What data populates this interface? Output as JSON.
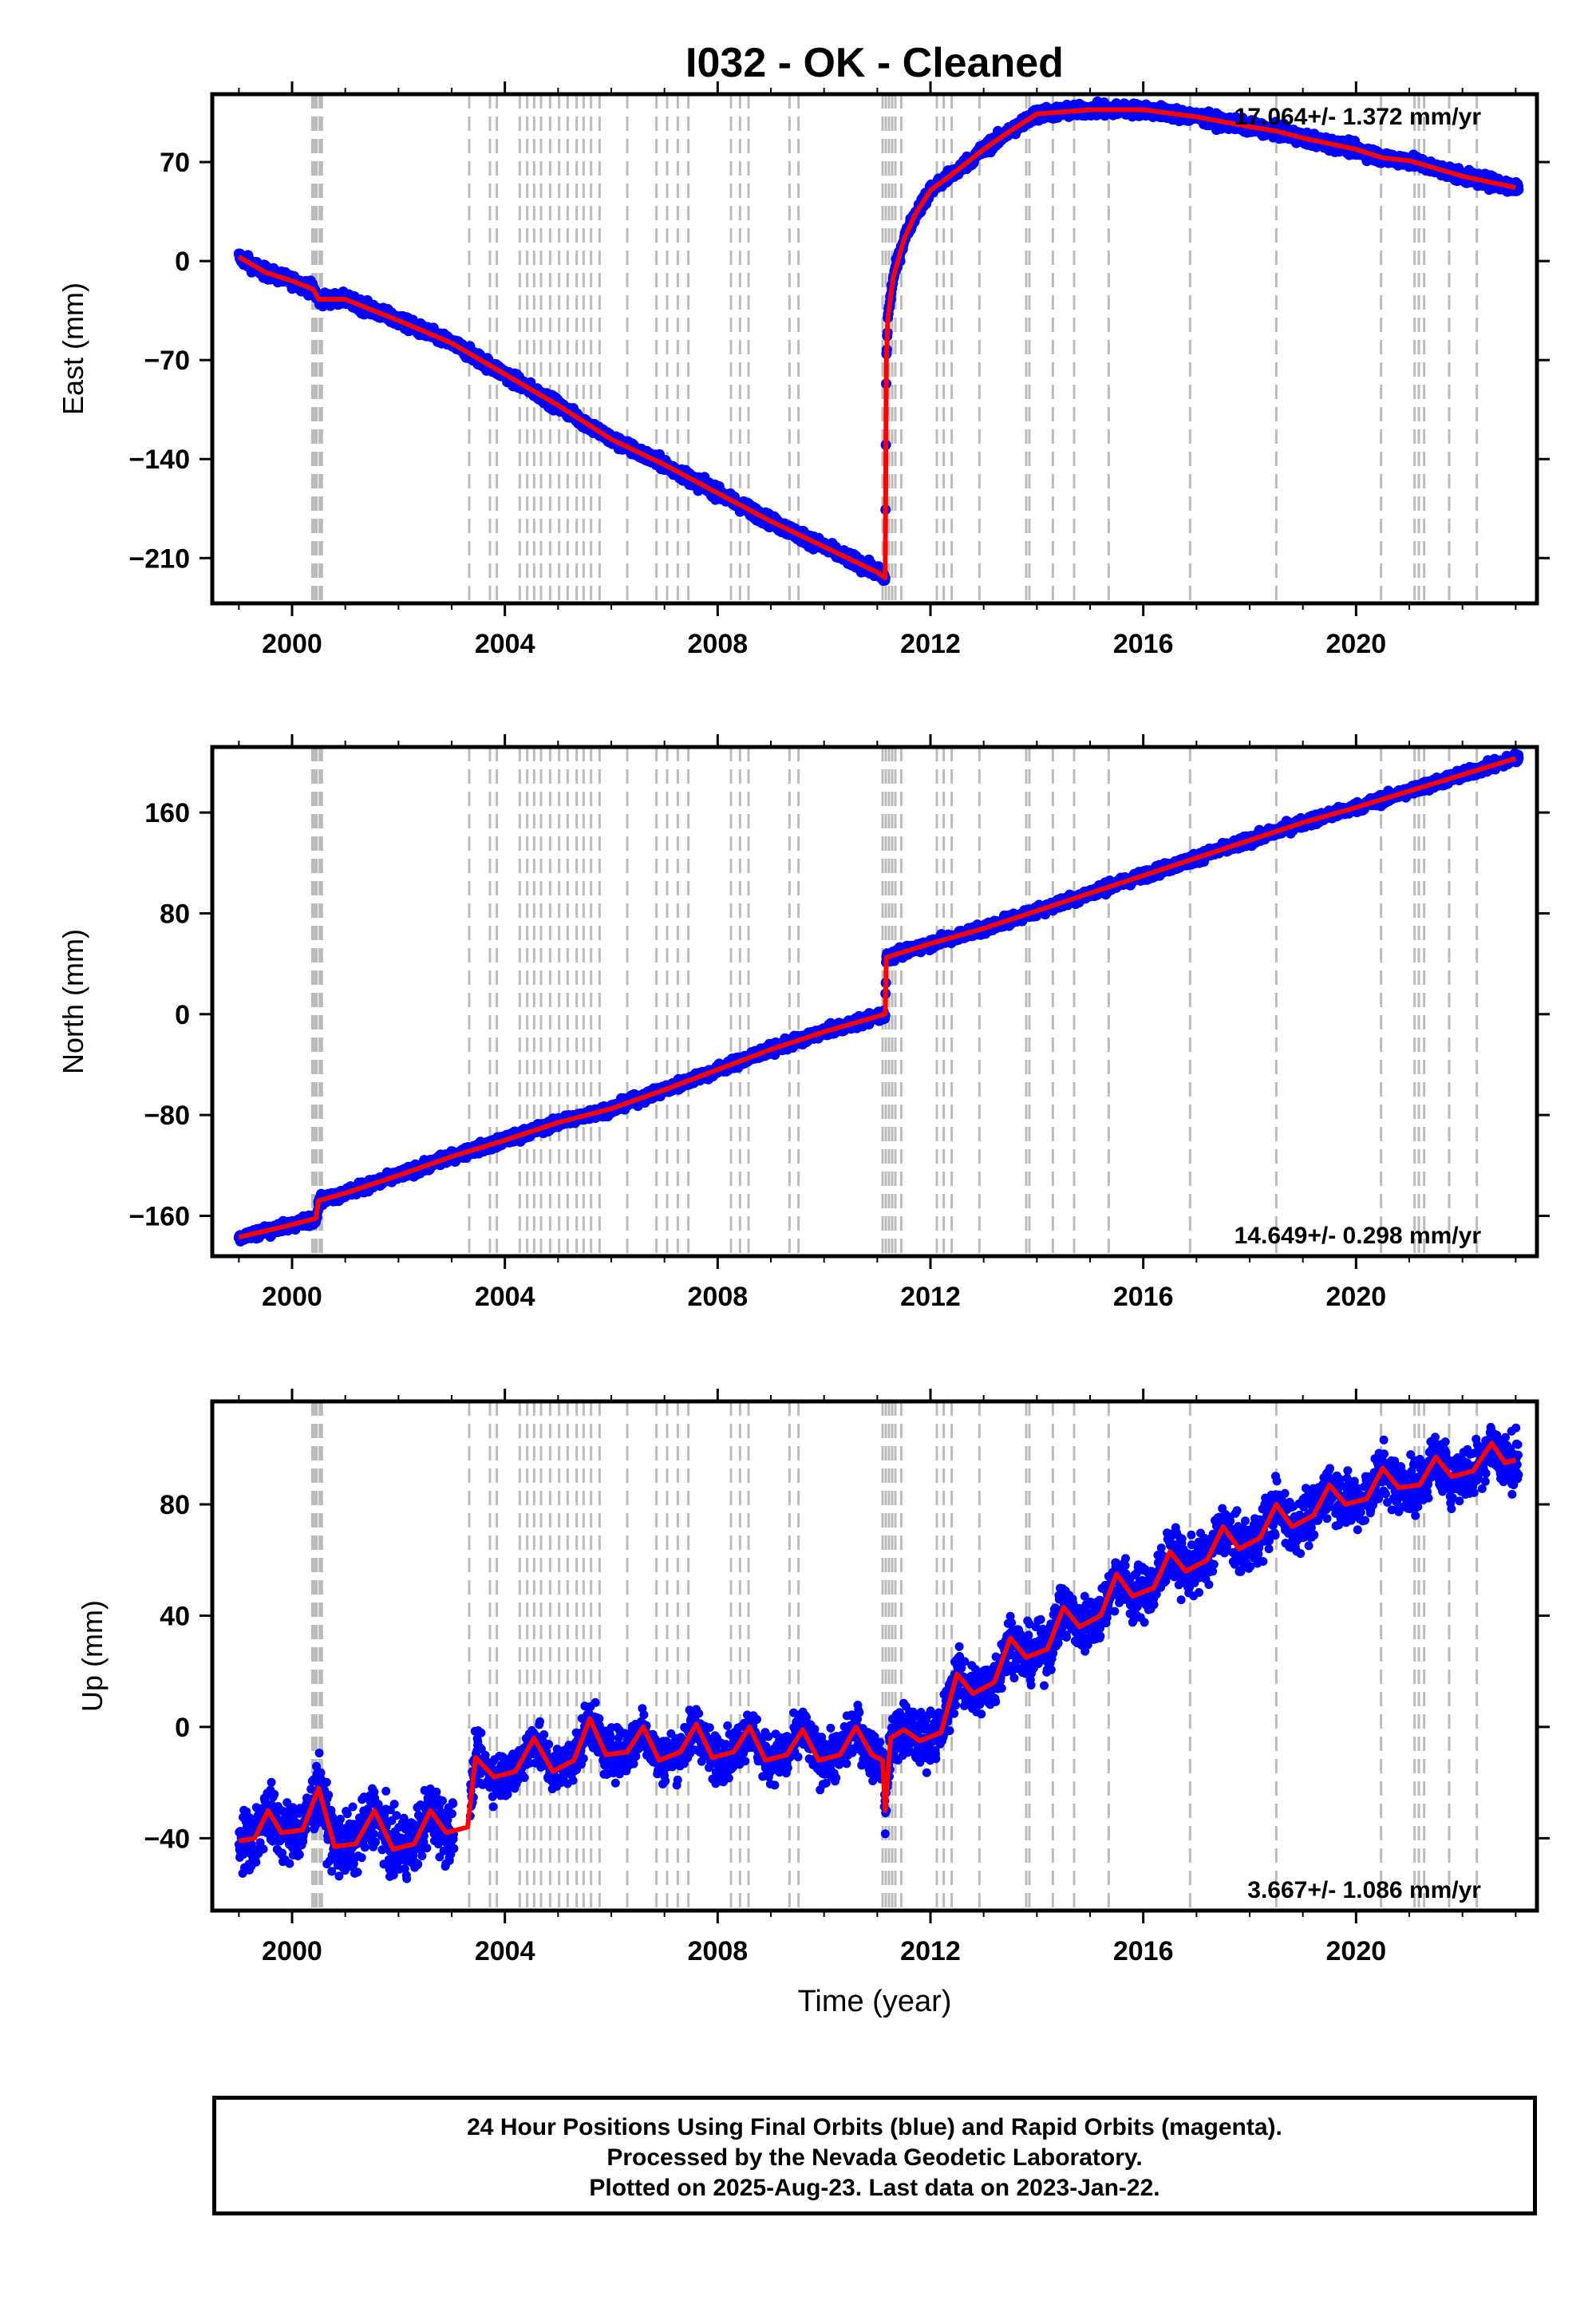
{
  "title": "I032  - OK - Cleaned",
  "x_axis_label": "Time (year)",
  "footer": {
    "line1": "24 Hour Positions Using Final Orbits (blue) and Rapid Orbits (magenta).",
    "line2": "Processed by the Nevada Geodetic Laboratory.",
    "line3": "Plotted on 2025-Aug-23. Last data on 2023-Jan-22."
  },
  "colors": {
    "data": "#0000ff",
    "model": "#ff0000",
    "event_lines": "#bbbbbb",
    "frame": "#000000"
  },
  "chart_data": [
    {
      "type": "scatter",
      "component": "East",
      "ylabel": "East (mm)",
      "xlim": [
        1998.5,
        2023.4
      ],
      "ylim": [
        -242,
        118
      ],
      "xticks": [
        2000,
        2004,
        2008,
        2012,
        2016,
        2020
      ],
      "yticks": [
        70,
        0,
        -70,
        -140,
        -210
      ],
      "rate_label": "17.064+/- 1.372 mm/yr",
      "rate_position": "top-right",
      "data_color": "blue",
      "model_color": "red",
      "model_curve": [
        [
          1999.0,
          3
        ],
        [
          1999.5,
          -8
        ],
        [
          2000.0,
          -14
        ],
        [
          2000.4,
          -20
        ],
        [
          2000.5,
          -27
        ],
        [
          2001.0,
          -27
        ],
        [
          2002.0,
          -42
        ],
        [
          2003.0,
          -58
        ],
        [
          2004.0,
          -80
        ],
        [
          2005.0,
          -102
        ],
        [
          2006.0,
          -126
        ],
        [
          2007.0,
          -144
        ],
        [
          2008.0,
          -164
        ],
        [
          2009.0,
          -184
        ],
        [
          2010.0,
          -202
        ],
        [
          2011.0,
          -220
        ],
        [
          2011.15,
          -224
        ],
        [
          2011.17,
          -70
        ],
        [
          2011.2,
          -40
        ],
        [
          2011.3,
          -12
        ],
        [
          2011.5,
          15
        ],
        [
          2011.7,
          32
        ],
        [
          2012.0,
          50
        ],
        [
          2012.5,
          64
        ],
        [
          2013.0,
          79
        ],
        [
          2013.5,
          92
        ],
        [
          2014.0,
          104
        ],
        [
          2015.0,
          107
        ],
        [
          2016.0,
          107
        ],
        [
          2017.0,
          102
        ],
        [
          2018.0,
          95
        ],
        [
          2018.5,
          92
        ],
        [
          2019.0,
          87
        ],
        [
          2020.0,
          79
        ],
        [
          2020.5,
          73
        ],
        [
          2021.0,
          71
        ],
        [
          2022.0,
          60
        ],
        [
          2022.5,
          56
        ],
        [
          2023.0,
          52
        ]
      ]
    },
    {
      "type": "scatter",
      "component": "North",
      "ylabel": "North (mm)",
      "xlim": [
        1998.5,
        2023.4
      ],
      "ylim": [
        -192,
        212
      ],
      "xticks": [
        2000,
        2004,
        2008,
        2012,
        2016,
        2020
      ],
      "yticks": [
        160,
        80,
        0,
        -80,
        -160
      ],
      "rate_label": "14.649+/- 0.298 mm/yr",
      "rate_position": "bottom-right",
      "data_color": "blue",
      "model_color": "red",
      "model_curve": [
        [
          1999.0,
          -177
        ],
        [
          2000.0,
          -167
        ],
        [
          2000.45,
          -162
        ],
        [
          2000.5,
          -148
        ],
        [
          2001.0,
          -142
        ],
        [
          2002.0,
          -128
        ],
        [
          2003.0,
          -113
        ],
        [
          2004.0,
          -100
        ],
        [
          2005.0,
          -86
        ],
        [
          2006.0,
          -75
        ],
        [
          2007.0,
          -60
        ],
        [
          2008.0,
          -44
        ],
        [
          2009.0,
          -28
        ],
        [
          2010.0,
          -14
        ],
        [
          2011.15,
          0
        ],
        [
          2011.17,
          45
        ],
        [
          2012.0,
          56
        ],
        [
          2013.0,
          68
        ],
        [
          2014.0,
          82
        ],
        [
          2015.0,
          96
        ],
        [
          2016.0,
          110
        ],
        [
          2017.0,
          124
        ],
        [
          2018.0,
          138
        ],
        [
          2019.0,
          152
        ],
        [
          2020.0,
          164
        ],
        [
          2021.0,
          177
        ],
        [
          2022.0,
          190
        ],
        [
          2023.0,
          203
        ]
      ]
    },
    {
      "type": "scatter",
      "component": "Up",
      "ylabel": "Up (mm)",
      "xlim": [
        1998.5,
        2023.4
      ],
      "ylim": [
        -66,
        117
      ],
      "xticks": [
        2000,
        2004,
        2008,
        2012,
        2016,
        2020
      ],
      "yticks": [
        80,
        40,
        0,
        -40
      ],
      "rate_label": "3.667+/- 1.086 mm/yr",
      "rate_position": "bottom-right",
      "data_color": "blue",
      "model_color": "red",
      "model_curve": [
        [
          1999.0,
          -41
        ],
        [
          1999.3,
          -40
        ],
        [
          1999.55,
          -30
        ],
        [
          1999.8,
          -38
        ],
        [
          2000.2,
          -37
        ],
        [
          2000.5,
          -22
        ],
        [
          2000.8,
          -43
        ],
        [
          2001.2,
          -42
        ],
        [
          2001.55,
          -30
        ],
        [
          2001.9,
          -44
        ],
        [
          2002.3,
          -42
        ],
        [
          2002.6,
          -30
        ],
        [
          2002.9,
          -38
        ],
        [
          2003.3,
          -36
        ],
        [
          2003.45,
          -11
        ],
        [
          2003.8,
          -18
        ],
        [
          2004.2,
          -16
        ],
        [
          2004.55,
          -4
        ],
        [
          2004.9,
          -16
        ],
        [
          2005.3,
          -12
        ],
        [
          2005.6,
          3
        ],
        [
          2005.9,
          -10
        ],
        [
          2006.3,
          -9
        ],
        [
          2006.6,
          0
        ],
        [
          2006.9,
          -12
        ],
        [
          2007.3,
          -9
        ],
        [
          2007.6,
          1
        ],
        [
          2007.9,
          -11
        ],
        [
          2008.3,
          -9
        ],
        [
          2008.6,
          0
        ],
        [
          2008.9,
          -12
        ],
        [
          2009.3,
          -10
        ],
        [
          2009.6,
          -1
        ],
        [
          2009.9,
          -12
        ],
        [
          2010.3,
          -10
        ],
        [
          2010.6,
          0
        ],
        [
          2010.9,
          -10
        ],
        [
          2011.1,
          -12
        ],
        [
          2011.15,
          -30
        ],
        [
          2011.25,
          -4
        ],
        [
          2011.5,
          -1
        ],
        [
          2011.8,
          -5
        ],
        [
          2012.2,
          -2
        ],
        [
          2012.5,
          19
        ],
        [
          2012.8,
          12
        ],
        [
          2013.2,
          16
        ],
        [
          2013.5,
          32
        ],
        [
          2013.8,
          25
        ],
        [
          2014.2,
          28
        ],
        [
          2014.5,
          43
        ],
        [
          2014.8,
          36
        ],
        [
          2015.2,
          40
        ],
        [
          2015.5,
          55
        ],
        [
          2015.8,
          47
        ],
        [
          2016.2,
          50
        ],
        [
          2016.5,
          63
        ],
        [
          2016.8,
          56
        ],
        [
          2017.2,
          60
        ],
        [
          2017.5,
          72
        ],
        [
          2017.8,
          64
        ],
        [
          2018.2,
          68
        ],
        [
          2018.5,
          80
        ],
        [
          2018.8,
          72
        ],
        [
          2019.2,
          76
        ],
        [
          2019.5,
          87
        ],
        [
          2019.8,
          80
        ],
        [
          2020.2,
          82
        ],
        [
          2020.5,
          93
        ],
        [
          2020.8,
          86
        ],
        [
          2021.2,
          87
        ],
        [
          2021.5,
          97
        ],
        [
          2021.8,
          90
        ],
        [
          2022.2,
          92
        ],
        [
          2022.55,
          102
        ],
        [
          2022.8,
          95
        ],
        [
          2023.0,
          96
        ]
      ]
    }
  ],
  "event_lines": [
    2000.38,
    2000.42,
    2000.46,
    2000.52,
    2000.56,
    2003.33,
    2003.72,
    2003.85,
    2004.28,
    2004.42,
    2004.55,
    2004.68,
    2004.85,
    2005.02,
    2005.18,
    2005.35,
    2005.48,
    2005.62,
    2005.78,
    2006.3,
    2006.85,
    2007.05,
    2007.25,
    2007.45,
    2008.25,
    2008.42,
    2008.58,
    2009.35,
    2009.52,
    2011.1,
    2011.16,
    2011.22,
    2011.28,
    2011.34,
    2011.45,
    2012.12,
    2012.25,
    2012.4,
    2012.92,
    2013.8,
    2013.86,
    2014.3,
    2014.7,
    2015.35,
    2016.88,
    2018.5,
    2020.47,
    2021.1,
    2021.18,
    2021.28,
    2021.75,
    2022.27
  ]
}
